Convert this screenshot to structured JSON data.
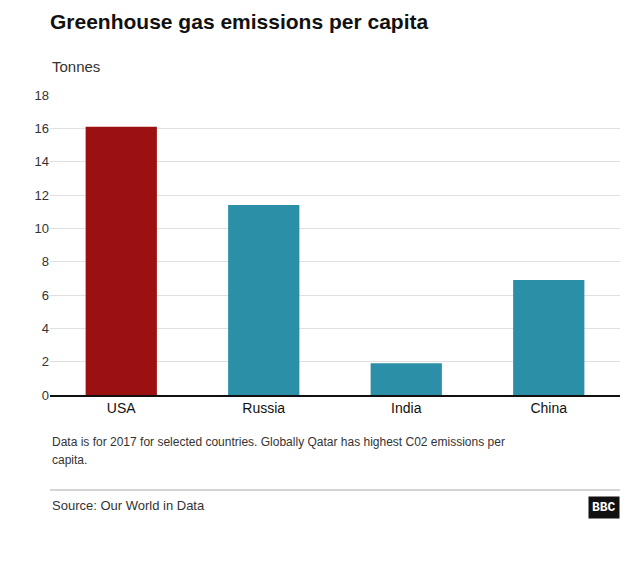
{
  "chart_data": {
    "type": "bar",
    "title": "Greenhouse gas emissions per capita",
    "subtitle": "Tonnes",
    "categories": [
      "USA",
      "Russia",
      "India",
      "China"
    ],
    "values": [
      16.1,
      11.4,
      1.9,
      6.9
    ],
    "colors": [
      "#9b1010",
      "#2b8fa8",
      "#2b8fa8",
      "#2b8fa8"
    ],
    "ylim": [
      0,
      18
    ],
    "yticks": [
      0,
      2,
      4,
      6,
      8,
      10,
      12,
      14,
      16,
      18
    ],
    "grid": true,
    "annotations": [
      "Data is for 2017 for selected countries. Globally Qatar has highest C02 emissions per",
      "capita.",
      "Source: Our World in Data",
      "BBC"
    ]
  }
}
